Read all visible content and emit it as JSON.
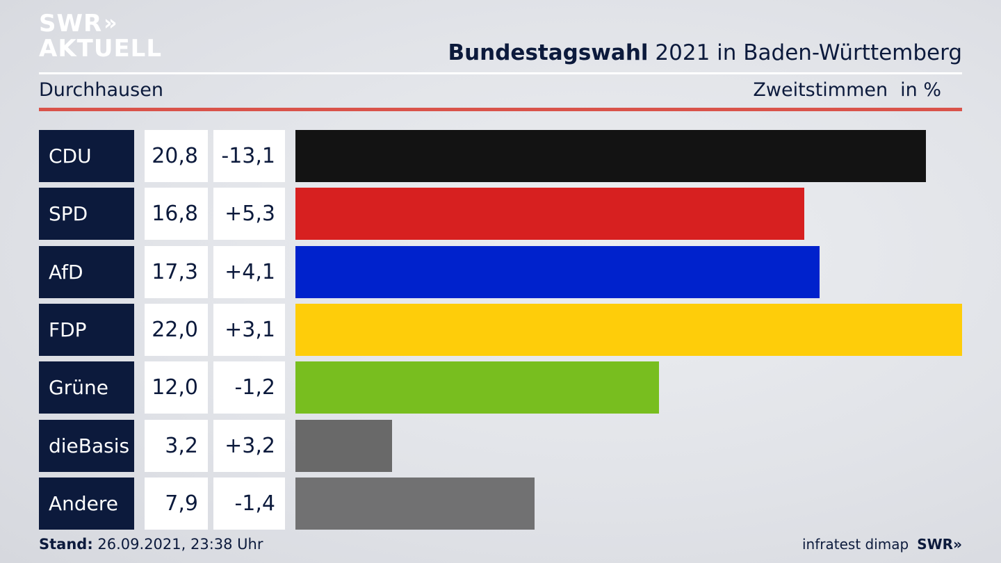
{
  "logo": {
    "line1": "SWR",
    "chevrons": "»",
    "line2": "AKTUELL"
  },
  "header": {
    "title_bold": "Bundestagswahl",
    "title_rest": " 2021 in Baden-Württemberg",
    "region": "Durchhausen",
    "metric": "Zweitstimmen",
    "unit": "in %"
  },
  "chart_data": {
    "type": "bar",
    "orientation": "horizontal",
    "categories": [
      "CDU",
      "SPD",
      "AfD",
      "FDP",
      "Grüne",
      "dieBasis",
      "Andere"
    ],
    "values": [
      20.8,
      16.8,
      17.3,
      22.0,
      12.0,
      3.2,
      7.9
    ],
    "value_labels": [
      "20,8",
      "16,8",
      "17,3",
      "22,0",
      "12,0",
      "3,2",
      "7,9"
    ],
    "diff_labels": [
      "-13,1",
      "+5,3",
      "+4,1",
      "+3,1",
      "-1,2",
      "+3,2",
      "-1,4"
    ],
    "colors": [
      "#131313",
      "#d72020",
      "#0022cc",
      "#fecd0a",
      "#78be1f",
      "#696969",
      "#717172"
    ],
    "xlim": [
      0,
      22.0
    ]
  },
  "footer": {
    "stand_label": "Stand:",
    "stand_value": " 26.09.2021, 23:38 Uhr",
    "source": "infratest dimap",
    "brand": "SWR»"
  }
}
